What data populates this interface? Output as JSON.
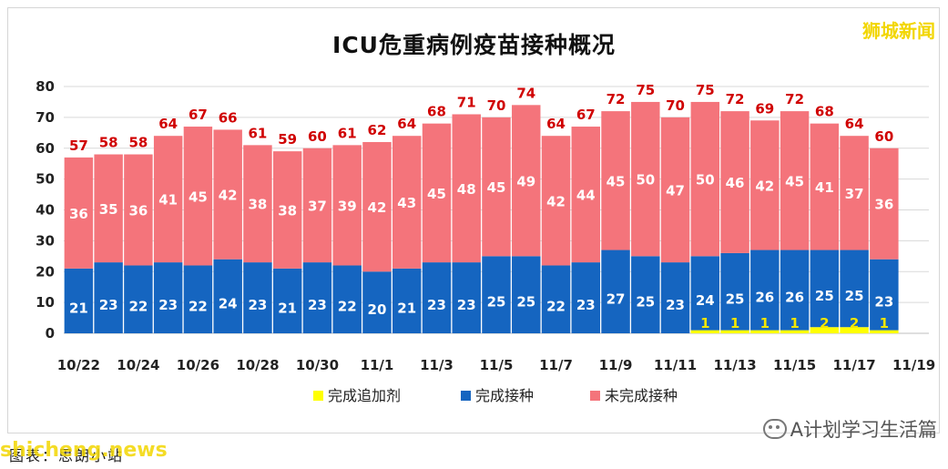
{
  "header": {
    "brand": "狮城新闻"
  },
  "footer": {
    "watermark": "A计划学习生活篇",
    "source": "图表：思朗小站",
    "source_watermark": "shicheng.news"
  },
  "chart_data": {
    "type": "bar",
    "stacked": true,
    "title": "ICU危重病例疫苗接种概况",
    "ylim": [
      0,
      80
    ],
    "yticks": [
      0,
      10,
      20,
      30,
      40,
      50,
      60,
      70,
      80
    ],
    "grid": true,
    "legend_position": "bottom",
    "categories": [
      "10/22",
      "10/23",
      "10/24",
      "10/25",
      "10/26",
      "10/27",
      "10/28",
      "10/29",
      "10/30",
      "10/31",
      "11/1",
      "11/2",
      "11/3",
      "11/4",
      "11/5",
      "11/6",
      "11/7",
      "11/8",
      "11/9",
      "11/10",
      "11/11",
      "11/12",
      "11/13",
      "11/14",
      "11/15",
      "11/16",
      "11/17",
      "11/18"
    ],
    "xtick_labels": [
      "10/22",
      "10/24",
      "10/26",
      "10/28",
      "10/30",
      "11/1",
      "11/3",
      "11/5",
      "11/7",
      "11/9",
      "11/11",
      "11/13",
      "11/15",
      "11/17",
      "11/19"
    ],
    "series": [
      {
        "name": "完成追加剂",
        "color": "#ffff00",
        "values": [
          0,
          0,
          0,
          0,
          0,
          0,
          0,
          0,
          0,
          0,
          0,
          0,
          0,
          0,
          0,
          0,
          0,
          0,
          0,
          0,
          0,
          1,
          1,
          1,
          1,
          2,
          2,
          1
        ]
      },
      {
        "name": "完成接种",
        "color": "#1565c0",
        "values": [
          21,
          23,
          22,
          23,
          22,
          24,
          23,
          21,
          23,
          22,
          20,
          21,
          23,
          23,
          25,
          25,
          22,
          23,
          27,
          25,
          23,
          24,
          25,
          26,
          26,
          25,
          25,
          23
        ]
      },
      {
        "name": "未完成接种",
        "color": "#f4747b",
        "values": [
          36,
          35,
          36,
          41,
          45,
          42,
          38,
          38,
          37,
          39,
          42,
          43,
          45,
          48,
          45,
          49,
          42,
          44,
          45,
          50,
          47,
          50,
          46,
          42,
          45,
          41,
          37,
          36
        ]
      }
    ],
    "totals": [
      57,
      58,
      58,
      64,
      67,
      66,
      61,
      59,
      60,
      61,
      62,
      64,
      68,
      71,
      70,
      74,
      64,
      67,
      72,
      75,
      70,
      75,
      72,
      69,
      72,
      68,
      64,
      60
    ]
  }
}
